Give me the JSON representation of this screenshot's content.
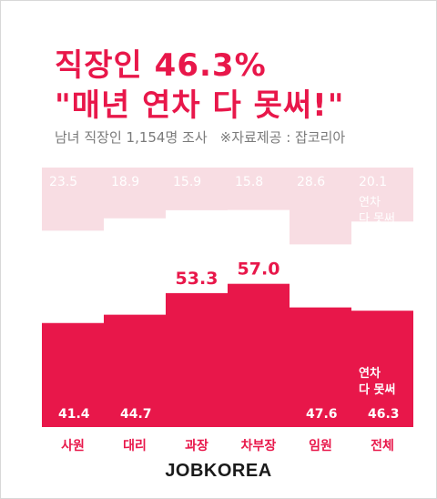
{
  "header": {
    "title_line1": "직장인 46.3%",
    "title_line2": "\"매년 연차 다 못써!\"",
    "subtitle": "남녀 직장인 1,154명 조사",
    "source": "※자료제공 : 잡코리아"
  },
  "logo": "JOBKOREA",
  "chart_data": {
    "type": "bar",
    "categories": [
      "사원",
      "대리",
      "과장",
      "차부장",
      "임원",
      "전체"
    ],
    "series": [
      {
        "values": [
          41.4,
          44.7,
          53.3,
          57.0,
          47.6,
          46.3
        ]
      },
      {
        "values": [
          23.5,
          18.9,
          15.9,
          15.8,
          28.6,
          20.1
        ]
      }
    ],
    "annotations": [
      {
        "category": "전체",
        "text": "연차\n다 못써"
      }
    ],
    "colors": {
      "main": "#e8174a",
      "upper": "#f8dde3",
      "upper_label": "#ffffff",
      "main_label_inside": "#ffffff",
      "main_label_outside": "#e8174a",
      "category_label": "#e8174a"
    },
    "grid": false,
    "legend": "none"
  }
}
